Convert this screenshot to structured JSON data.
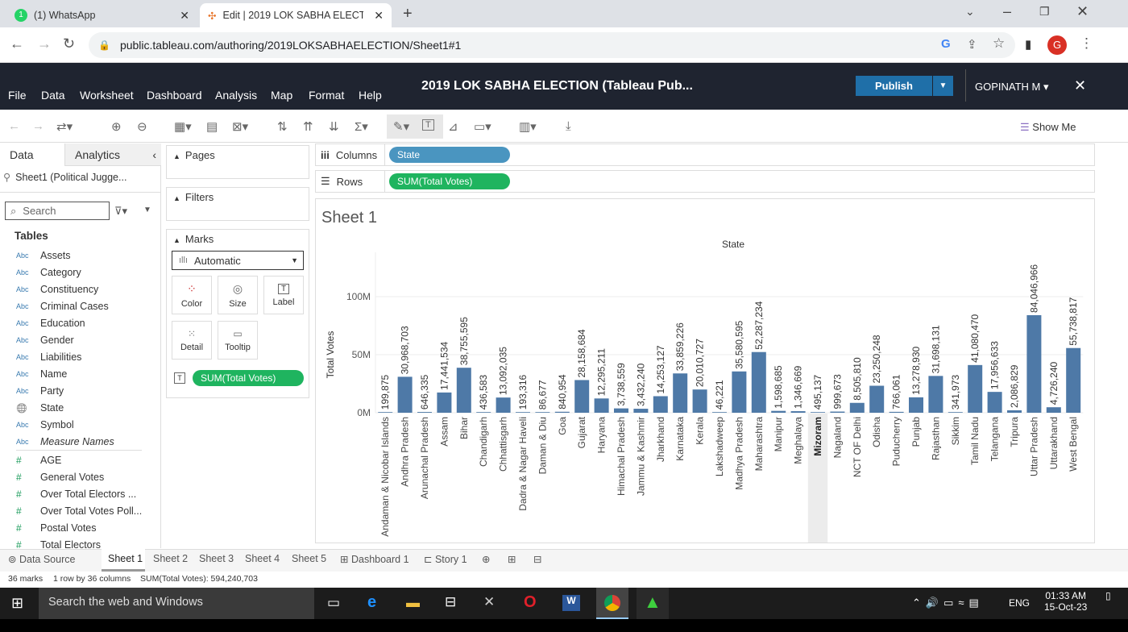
{
  "browser": {
    "tabs": [
      {
        "label": "(1) WhatsApp",
        "badge": "1"
      },
      {
        "label": "Edit | 2019 LOK SABHA ELECTIO"
      }
    ],
    "url": "public.tableau.com/authoring/2019LOKSABHAELECTION/Sheet1#1",
    "profile_initial": "G"
  },
  "tableau": {
    "menu": [
      "File",
      "Data",
      "Worksheet",
      "Dashboard",
      "Analysis",
      "Map",
      "Format",
      "Help"
    ],
    "title": "2019 LOK SABHA ELECTION (Tableau Pub...",
    "publish_label": "Publish",
    "user": "GOPINATH M",
    "show_me": "Show Me",
    "data_tab": "Data",
    "analytics_tab": "Analytics",
    "datasource": "Sheet1 (Political Jugge...",
    "search_placeholder": "Search",
    "tables_label": "Tables",
    "dimensions": [
      {
        "type": "Abc",
        "name": "Assets"
      },
      {
        "type": "Abc",
        "name": "Category"
      },
      {
        "type": "Abc",
        "name": "Constituency"
      },
      {
        "type": "Abc",
        "name": "Criminal Cases"
      },
      {
        "type": "Abc",
        "name": "Education"
      },
      {
        "type": "Abc",
        "name": "Gender"
      },
      {
        "type": "Abc",
        "name": "Liabilities"
      },
      {
        "type": "Abc",
        "name": "Name"
      },
      {
        "type": "Abc",
        "name": "Party"
      },
      {
        "type": "geo",
        "name": "State"
      },
      {
        "type": "Abc",
        "name": "Symbol"
      },
      {
        "type": "Abc",
        "name": "Measure Names"
      }
    ],
    "measures": [
      {
        "type": "#",
        "name": "AGE"
      },
      {
        "type": "#",
        "name": "General Votes"
      },
      {
        "type": "#",
        "name": "Over Total Electors ..."
      },
      {
        "type": "#",
        "name": "Over Total Votes Poll..."
      },
      {
        "type": "#",
        "name": "Postal Votes"
      },
      {
        "type": "#",
        "name": "Total Electors"
      }
    ],
    "pages_label": "Pages",
    "filters_label": "Filters",
    "marks_label": "Marks",
    "marks_type": "Automatic",
    "mark_buttons": [
      "Color",
      "Size",
      "Label",
      "Detail",
      "Tooltip"
    ],
    "mark_pill": "SUM(Total Votes)",
    "columns_label": "Columns",
    "rows_label": "Rows",
    "columns_pill": "State",
    "rows_pill": "SUM(Total Votes)",
    "sheet_title": "Sheet 1",
    "bottom_tabs": [
      "Data Source",
      "Sheet 1",
      "Sheet 2",
      "Sheet 3",
      "Sheet 4",
      "Sheet 5",
      "Dashboard 1",
      "Story 1"
    ],
    "status": [
      "36 marks",
      "1 row by 36 columns",
      "SUM(Total Votes): 594,240,703"
    ]
  },
  "chart_data": {
    "type": "bar",
    "title": "State",
    "xlabel": "State",
    "ylabel": "Total Votes",
    "yticks": [
      "0M",
      "50M",
      "100M"
    ],
    "ylim": [
      0,
      100000000
    ],
    "categories": [
      "Andaman & Nicobar Islands",
      "Andhra Pradesh",
      "Arunachal Pradesh",
      "Assam",
      "Bihar",
      "Chandigarh",
      "Chhattisgarh",
      "Dadra & Nagar Haveli",
      "Daman & Diu",
      "Goa",
      "Gujarat",
      "Haryana",
      "Himachal Pradesh",
      "Jammu & Kashmir",
      "Jharkhand",
      "Karnataka",
      "Kerala",
      "Lakshadweep",
      "Madhya Pradesh",
      "Maharashtra",
      "Manipur",
      "Meghalaya",
      "Mizoram",
      "Nagaland",
      "NCT OF Delhi",
      "Odisha",
      "Puducherry",
      "Punjab",
      "Rajasthan",
      "Sikkim",
      "Tamil Nadu",
      "Telangana",
      "Tripura",
      "Uttar Pradesh",
      "Uttarakhand",
      "West Bengal"
    ],
    "values": [
      199875,
      30968703,
      646335,
      17441534,
      38755595,
      436583,
      13092035,
      193316,
      86677,
      840954,
      28158684,
      12295211,
      3738559,
      3432240,
      14253127,
      33859226,
      20010727,
      46221,
      35580595,
      52287234,
      1598685,
      1346669,
      495137,
      999673,
      8505810,
      23250248,
      766061,
      13278930,
      31698131,
      341973,
      41080470,
      17956633,
      2086829,
      84046966,
      4726240,
      55738817
    ],
    "labels": [
      "199,875",
      "30,968,703",
      "646,335",
      "17,441,534",
      "38,755,595",
      "436,583",
      "13,092,035",
      "193,316",
      "86,677",
      "840,954",
      "28,158,684",
      "12,295,211",
      "3,738,559",
      "3,432,240",
      "14,253,127",
      "33,859,226",
      "20,010,727",
      "46,221",
      "35,580,595",
      "52,287,234",
      "1,598,685",
      "1,346,669",
      "495,137",
      "999,673",
      "8,505,810",
      "23,250,248",
      "766,061",
      "13,278,930",
      "31,698,131",
      "341,973",
      "41,080,470",
      "17,956,633",
      "2,086,829",
      "84,046,966",
      "4,726,240",
      "55,738,817"
    ],
    "bar_color": "#4e79a7"
  },
  "taskbar": {
    "search": "Search the web and Windows",
    "lang": "ENG",
    "time": "01:33 AM",
    "date": "15-Oct-23"
  }
}
